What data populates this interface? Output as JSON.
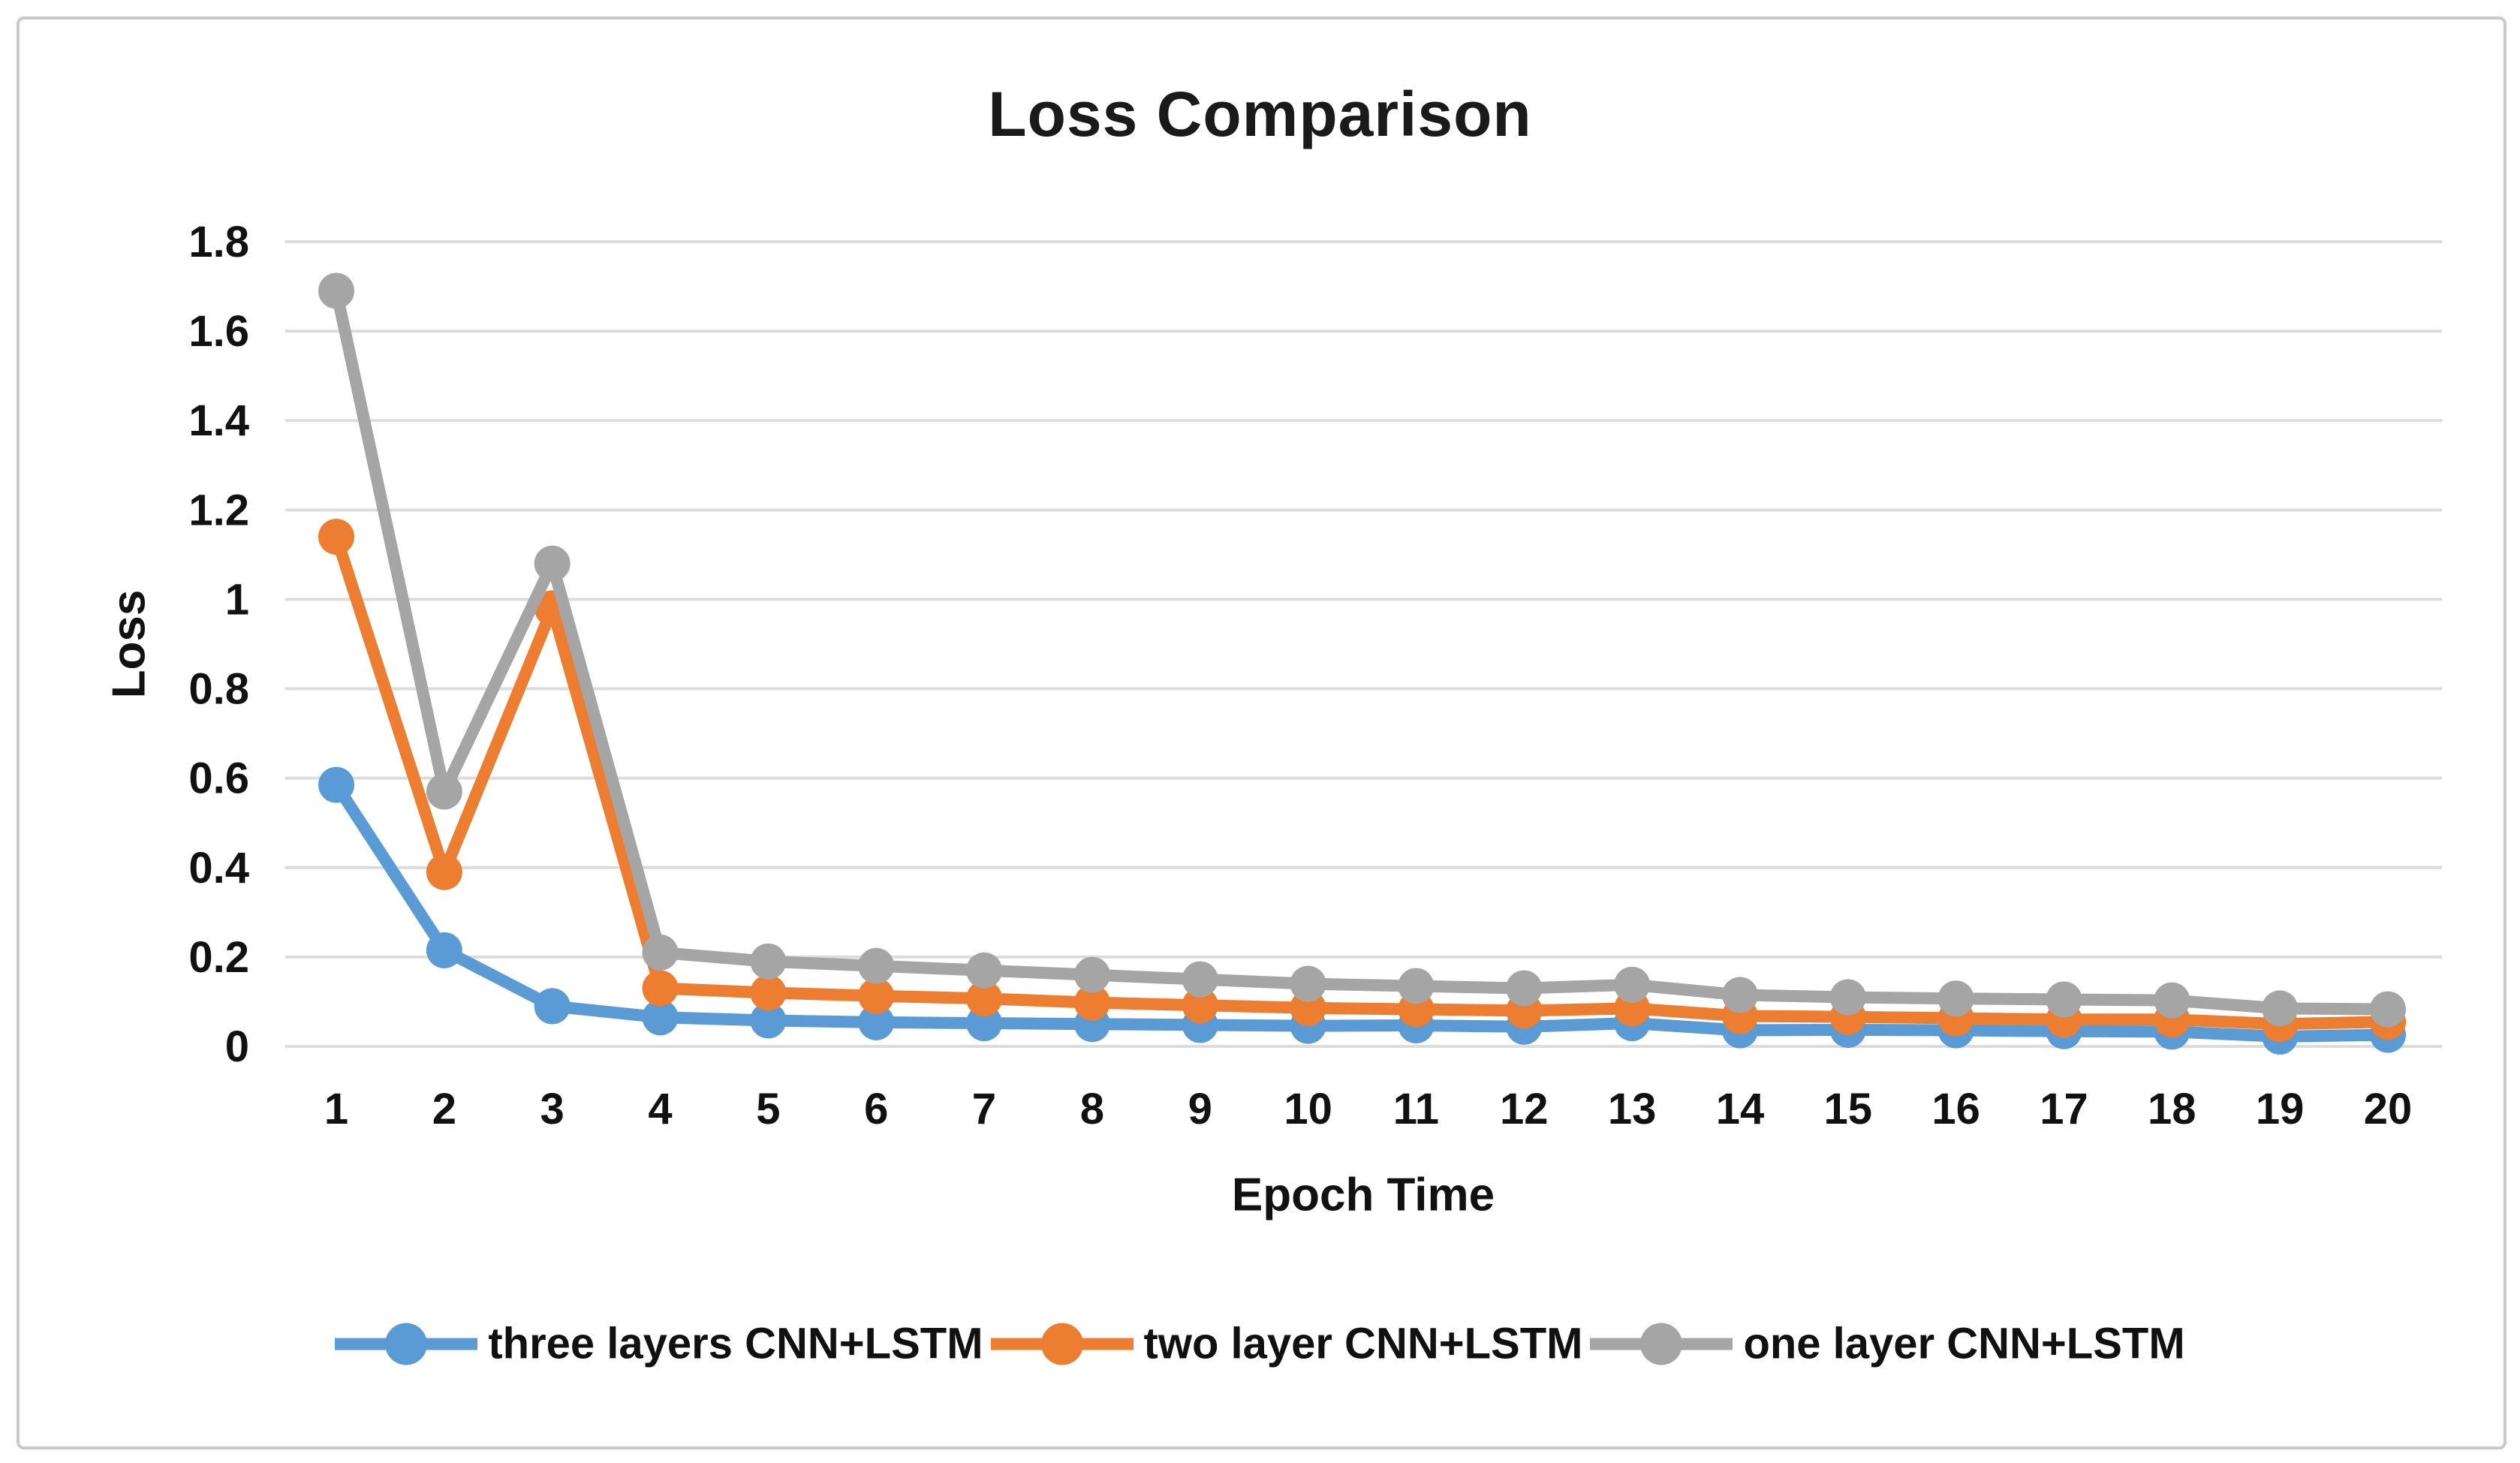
{
  "page": {
    "background_color": "#ffffff",
    "frame_border_color": "#c9c9c9",
    "gridline_color": "#dcdcdc",
    "text_color": "#111111"
  },
  "chart_data": {
    "type": "line",
    "title": "Loss Comparison",
    "xlabel": "Epoch Time",
    "ylabel": "Loss",
    "categories": [
      1,
      2,
      3,
      4,
      5,
      6,
      7,
      8,
      9,
      10,
      11,
      12,
      13,
      14,
      15,
      16,
      17,
      18,
      19,
      20
    ],
    "y_ticks": [
      "1.8",
      "1.6",
      "1.4",
      "1.2",
      "1",
      "0.8",
      "0.6",
      "0.4",
      "0.2",
      "0"
    ],
    "ylim": [
      0,
      1.8
    ],
    "grid": true,
    "legend_position": "bottom",
    "marker": "circle",
    "series": [
      {
        "name": "three layers CNN+LSTM",
        "color": "#5B9BD5",
        "values": [
          0.585,
          0.215,
          0.09,
          0.065,
          0.058,
          0.054,
          0.052,
          0.05,
          0.048,
          0.046,
          0.047,
          0.044,
          0.052,
          0.036,
          0.037,
          0.036,
          0.034,
          0.033,
          0.022,
          0.026
        ]
      },
      {
        "name": "two layer CNN+LSTM",
        "color": "#ED7D31",
        "values": [
          1.14,
          0.39,
          0.98,
          0.13,
          0.12,
          0.113,
          0.107,
          0.098,
          0.092,
          0.086,
          0.083,
          0.08,
          0.085,
          0.068,
          0.066,
          0.063,
          0.06,
          0.06,
          0.05,
          0.055
        ]
      },
      {
        "name": "one layer CNN+LSTM",
        "color": "#A5A5A5",
        "values": [
          1.69,
          0.57,
          1.08,
          0.21,
          0.19,
          0.18,
          0.17,
          0.16,
          0.15,
          0.14,
          0.135,
          0.13,
          0.138,
          0.115,
          0.11,
          0.107,
          0.105,
          0.103,
          0.085,
          0.083
        ]
      }
    ]
  }
}
